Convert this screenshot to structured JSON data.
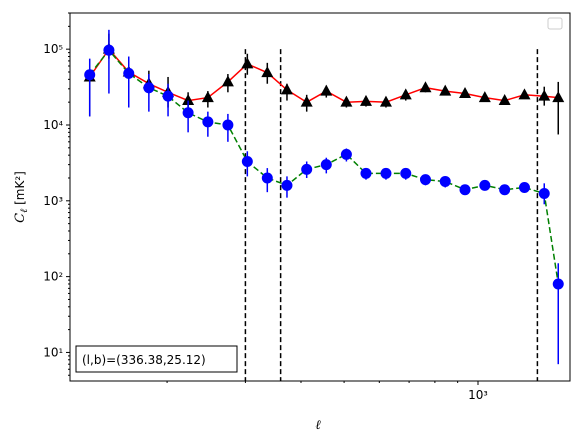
{
  "chart_data": {
    "type": "line",
    "title": "",
    "xlabel": "ℓ",
    "ylabel": "C_ℓ [mK²]",
    "xscale": "log",
    "yscale": "log",
    "xlim": [
      121,
      1610
    ],
    "ylim": [
      4.2,
      300000
    ],
    "x_tick_labels": [
      {
        "value": 1000,
        "label": "10³"
      }
    ],
    "y_tick_labels": [
      {
        "value": 10,
        "label": "10¹"
      },
      {
        "value": 100,
        "label": "10²"
      },
      {
        "value": 1000,
        "label": "10³"
      },
      {
        "value": 10000,
        "label": "10⁴"
      },
      {
        "value": 100000,
        "label": "10⁵"
      }
    ],
    "vlines": [
      300,
      360,
      1360
    ],
    "legend": {
      "position": "top-right",
      "entries": []
    },
    "annotation": "(l,b)=(336.38,25.12)",
    "series": [
      {
        "marker": "triangle",
        "line_style": "solid",
        "color": "#000000",
        "line_color": "#ff0000",
        "points": [
          {
            "x": 134,
            "y": 43000,
            "lo": 13000,
            "hi": 50000
          },
          {
            "x": 148,
            "y": 100000,
            "lo": 75000,
            "hi": 160000
          },
          {
            "x": 164,
            "y": 50000,
            "lo": 38000,
            "hi": 65000
          },
          {
            "x": 182,
            "y": 35000,
            "lo": 26000,
            "hi": 52000
          },
          {
            "x": 201,
            "y": 27000,
            "lo": 17000,
            "hi": 43000
          },
          {
            "x": 223,
            "y": 21000,
            "lo": 16000,
            "hi": 27000
          },
          {
            "x": 247,
            "y": 23000,
            "lo": 17000,
            "hi": 28000
          },
          {
            "x": 274,
            "y": 37000,
            "lo": 27000,
            "hi": 47000
          },
          {
            "x": 303,
            "y": 64000,
            "lo": 46000,
            "hi": 87000
          },
          {
            "x": 336,
            "y": 49000,
            "lo": 35000,
            "hi": 66000
          },
          {
            "x": 372,
            "y": 29000,
            "lo": 21000,
            "hi": 35000
          },
          {
            "x": 412,
            "y": 20000,
            "lo": 15000,
            "hi": 25000
          },
          {
            "x": 456,
            "y": 28000,
            "lo": 23000,
            "hi": 33000
          },
          {
            "x": 506,
            "y": 20000,
            "lo": 17000,
            "hi": 23000
          },
          {
            "x": 560,
            "y": 20500,
            "lo": 17500,
            "hi": 23000
          },
          {
            "x": 621,
            "y": 20000,
            "lo": 17000,
            "hi": 23000
          },
          {
            "x": 688,
            "y": 25000,
            "lo": 21000,
            "hi": 29000
          },
          {
            "x": 762,
            "y": 31000,
            "lo": 27000,
            "hi": 35000
          },
          {
            "x": 844,
            "y": 28000,
            "lo": 25000,
            "hi": 31000
          },
          {
            "x": 935,
            "y": 26000,
            "lo": 23000,
            "hi": 29000
          },
          {
            "x": 1036,
            "y": 23000,
            "lo": 21000,
            "hi": 26000
          },
          {
            "x": 1148,
            "y": 21000,
            "lo": 19000,
            "hi": 23000
          },
          {
            "x": 1272,
            "y": 25000,
            "lo": 22000,
            "hi": 28000
          },
          {
            "x": 1409,
            "y": 24000,
            "lo": 18000,
            "hi": 32000
          },
          {
            "x": 1515,
            "y": 23000,
            "lo": 7500,
            "hi": 37000
          }
        ]
      },
      {
        "marker": "circle",
        "line_style": "dashed",
        "color": "#0000ff",
        "line_color": "#008000",
        "points": [
          {
            "x": 134,
            "y": 46000,
            "lo": 13000,
            "hi": 75000
          },
          {
            "x": 148,
            "y": 97000,
            "lo": 26000,
            "hi": 180000
          },
          {
            "x": 164,
            "y": 48000,
            "lo": 17000,
            "hi": 80000
          },
          {
            "x": 182,
            "y": 31000,
            "lo": 15000,
            "hi": 47000
          },
          {
            "x": 201,
            "y": 24000,
            "lo": 13000,
            "hi": 35000
          },
          {
            "x": 223,
            "y": 14500,
            "lo": 8000,
            "hi": 21000
          },
          {
            "x": 247,
            "y": 11000,
            "lo": 7000,
            "hi": 15000
          },
          {
            "x": 274,
            "y": 10000,
            "lo": 6000,
            "hi": 14000
          },
          {
            "x": 303,
            "y": 3300,
            "lo": 2100,
            "hi": 4500
          },
          {
            "x": 336,
            "y": 2000,
            "lo": 1300,
            "hi": 2700
          },
          {
            "x": 372,
            "y": 1600,
            "lo": 1100,
            "hi": 2100
          },
          {
            "x": 412,
            "y": 2600,
            "lo": 2000,
            "hi": 3300
          },
          {
            "x": 456,
            "y": 3000,
            "lo": 2300,
            "hi": 3700
          },
          {
            "x": 506,
            "y": 4100,
            "lo": 3300,
            "hi": 4900
          },
          {
            "x": 560,
            "y": 2300,
            "lo": 1900,
            "hi": 2700
          },
          {
            "x": 621,
            "y": 2300,
            "lo": 1900,
            "hi": 2700
          },
          {
            "x": 688,
            "y": 2300,
            "lo": 1900,
            "hi": 2700
          },
          {
            "x": 762,
            "y": 1900,
            "lo": 1600,
            "hi": 2200
          },
          {
            "x": 844,
            "y": 1800,
            "lo": 1500,
            "hi": 2000
          },
          {
            "x": 935,
            "y": 1400,
            "lo": 1200,
            "hi": 1600
          },
          {
            "x": 1036,
            "y": 1600,
            "lo": 1400,
            "hi": 1800
          },
          {
            "x": 1148,
            "y": 1400,
            "lo": 1200,
            "hi": 1600
          },
          {
            "x": 1272,
            "y": 1500,
            "lo": 1300,
            "hi": 1700
          },
          {
            "x": 1409,
            "y": 1250,
            "lo": 900,
            "hi": 1700
          },
          {
            "x": 1515,
            "y": 80,
            "lo": 7,
            "hi": 150
          }
        ]
      }
    ]
  }
}
